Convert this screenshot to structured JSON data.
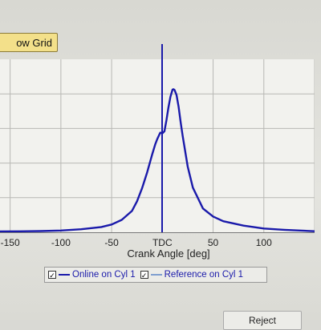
{
  "toolbar": {
    "grid_button_label": "ow Grid"
  },
  "chart_data": {
    "type": "line",
    "xlabel": "Crank Angle [deg]",
    "xlim": [
      -160,
      150
    ],
    "x_ticks": [
      "-150",
      "-100",
      "-50",
      "TDC",
      "50",
      "100"
    ],
    "grid": true,
    "marker_line": {
      "x": 0,
      "label": "TDC",
      "color": "#1a1aaa"
    },
    "series": [
      {
        "name": "Online on Cyl 1",
        "color": "#1a1aaa",
        "x": [
          -160,
          -140,
          -120,
          -100,
          -80,
          -60,
          -50,
          -40,
          -30,
          -25,
          -20,
          -15,
          -10,
          -7,
          -5,
          -3,
          -2,
          0,
          2,
          4,
          6,
          8,
          10,
          11,
          12,
          14,
          16,
          18,
          20,
          25,
          30,
          40,
          50,
          60,
          80,
          100,
          120,
          150
        ],
        "y": [
          0.0,
          0.1,
          0.3,
          0.7,
          1.6,
          3.2,
          5.0,
          8.3,
          14.6,
          21.5,
          30.8,
          42.2,
          55.1,
          62.3,
          66.0,
          69.1,
          70.5,
          70.0,
          71.5,
          79.3,
          88.5,
          96.2,
          101.2,
          101.5,
          101.0,
          97.3,
          88.8,
          78.0,
          68.3,
          46.3,
          31.3,
          16.4,
          10.7,
          7.3,
          4.2,
          2.1,
          1.2,
          0.2
        ]
      },
      {
        "name": "Reference on Cyl 1",
        "color": "#7f9fcf",
        "x": [],
        "y": []
      }
    ]
  },
  "legend": {
    "items": [
      {
        "label": "Online on Cyl 1",
        "checked": "✓",
        "color": "#1a1aaa"
      },
      {
        "label": "Reference on Cyl 1",
        "checked": "✓",
        "color": "#7f9fcf"
      }
    ]
  },
  "footer": {
    "reject_label": "Reject"
  }
}
